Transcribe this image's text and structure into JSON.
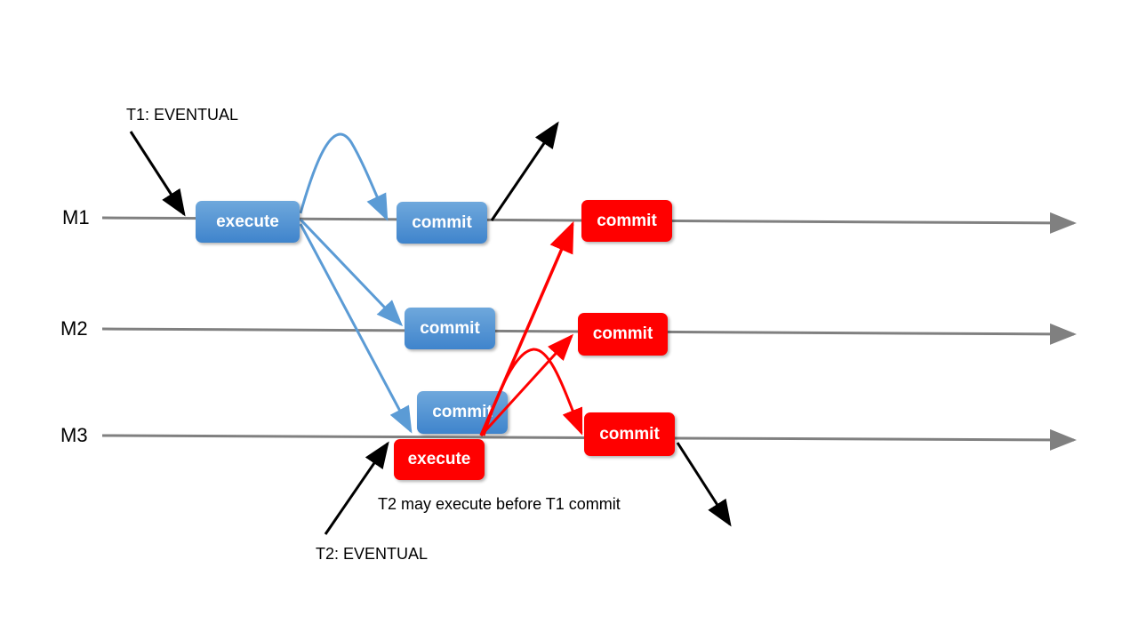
{
  "machines": [
    "M1",
    "M2",
    "M3"
  ],
  "labels": {
    "t1": "T1: EVENTUAL",
    "t2": "T2: EVENTUAL",
    "note": "T2 may execute before T1 commit"
  },
  "boxes": {
    "t1_execute": "execute",
    "t1_commit_m1": "commit",
    "t1_commit_m2": "commit",
    "t1_commit_m3": "commit",
    "t2_execute": "execute",
    "t2_commit_m1": "commit",
    "t2_commit_m2": "commit",
    "t2_commit_m3": "commit"
  },
  "colors": {
    "t1": "#5b9bd5",
    "t2": "#ff0000",
    "timeline": "#808080",
    "client": "#000000"
  }
}
